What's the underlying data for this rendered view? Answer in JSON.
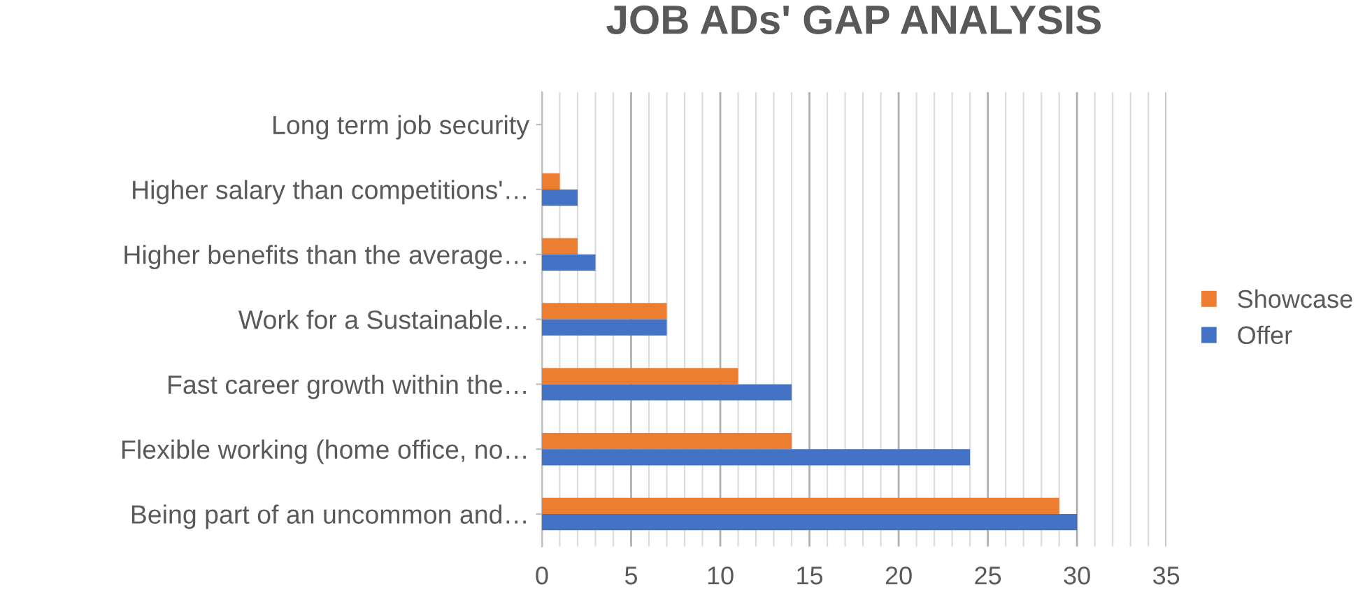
{
  "chart_data": {
    "type": "bar",
    "orientation": "horizontal",
    "title": "JOB ADs' GAP ANALYSIS",
    "categories": [
      "Long term job security",
      "Higher salary than competitions'…",
      "Higher benefits than the average…",
      "Work for a Sustainable…",
      "Fast career growth within the…",
      "Flexible working (home office, no…",
      "Being part of an uncommon and…"
    ],
    "series": [
      {
        "name": "Showcase",
        "color": "#ed7d31",
        "values": [
          0,
          1,
          2,
          7,
          11,
          14,
          29
        ]
      },
      {
        "name": "Offer",
        "color": "#4472c4",
        "values": [
          0,
          2,
          3,
          7,
          14,
          24,
          30
        ]
      }
    ],
    "xlim": [
      0,
      35
    ],
    "xticks": [
      0,
      5,
      10,
      15,
      20,
      25,
      30,
      35
    ],
    "grid": "x",
    "legend": "right"
  }
}
